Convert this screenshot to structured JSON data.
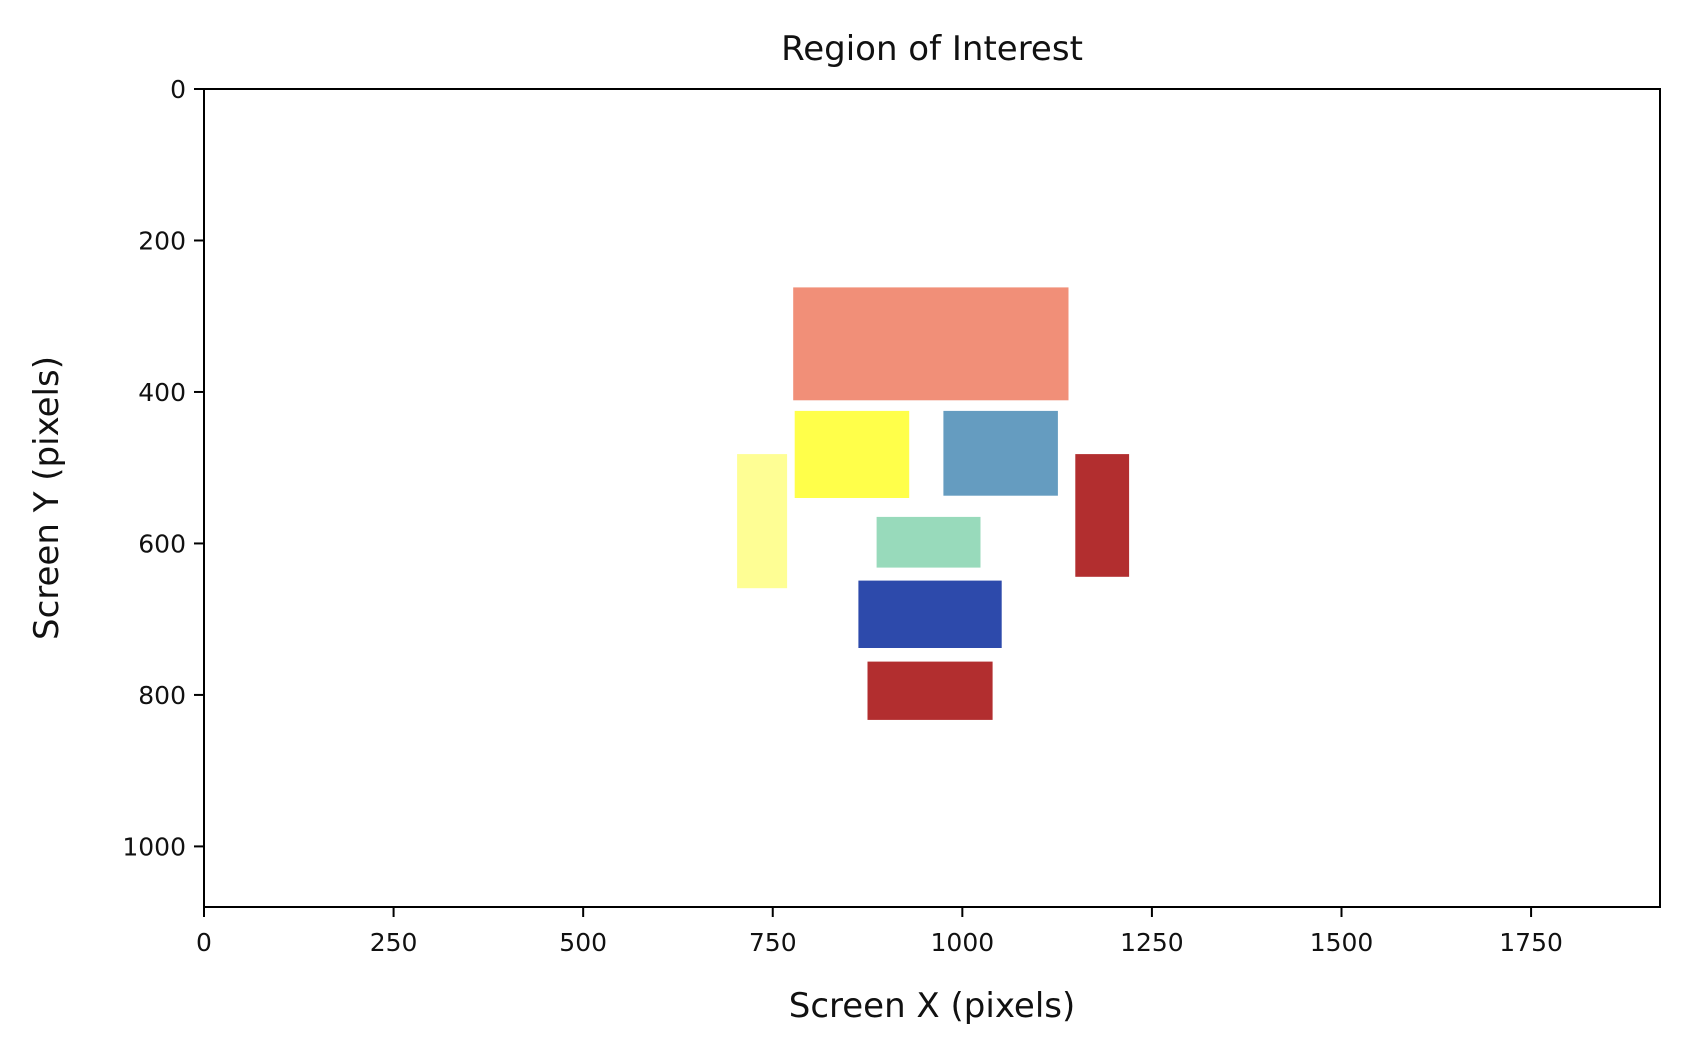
{
  "chart_data": {
    "type": "heatmap",
    "title": "Region of Interest",
    "xlabel": "Screen X (pixels)",
    "ylabel": "Screen Y (pixels)",
    "xlim": [
      0,
      1920
    ],
    "ylim": [
      1080,
      0
    ],
    "y_axis_inverted": true,
    "grid": false,
    "x_ticks": [
      0,
      250,
      500,
      750,
      1000,
      1250,
      1500,
      1750
    ],
    "y_ticks": [
      0,
      200,
      400,
      600,
      800,
      1000
    ],
    "rectangles": [
      {
        "x0": 777,
        "x1": 1140,
        "y0": 262,
        "y1": 411,
        "color": "#f18f78"
      },
      {
        "x0": 779,
        "x1": 930,
        "y0": 425,
        "y1": 540,
        "color": "#ffff4a"
      },
      {
        "x0": 975,
        "x1": 1126,
        "y0": 425,
        "y1": 537,
        "color": "#659cc0"
      },
      {
        "x0": 703,
        "x1": 769,
        "y0": 482,
        "y1": 659,
        "color": "#fefe94"
      },
      {
        "x0": 1149,
        "x1": 1220,
        "y0": 482,
        "y1": 644,
        "color": "#b22e2f"
      },
      {
        "x0": 887,
        "x1": 1024,
        "y0": 565,
        "y1": 632,
        "color": "#98dabb"
      },
      {
        "x0": 863,
        "x1": 1052,
        "y0": 649,
        "y1": 738,
        "color": "#2d4aab"
      },
      {
        "x0": 875,
        "x1": 1040,
        "y0": 756,
        "y1": 833,
        "color": "#b22e2f"
      }
    ]
  }
}
